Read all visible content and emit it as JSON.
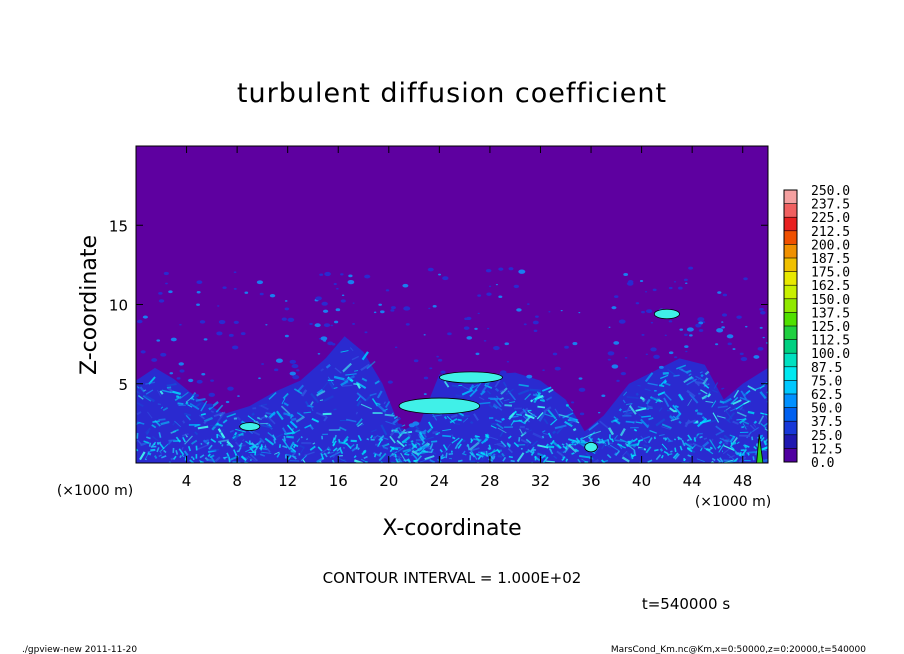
{
  "chart_data": {
    "type": "heatmap",
    "title": "turbulent diffusion coefficient",
    "xlabel": "X-coordinate",
    "ylabel": "Z-coordinate",
    "x_unit_left": "(×1000 m)",
    "x_unit_right": "(×1000 m)",
    "xlim": [
      0,
      50
    ],
    "ylim": [
      0,
      20
    ],
    "x_ticks": [
      "4",
      "8",
      "12",
      "16",
      "20",
      "24",
      "28",
      "32",
      "36",
      "40",
      "44",
      "48"
    ],
    "y_ticks": [
      "5",
      "10",
      "15"
    ],
    "x_tick_values": [
      4,
      8,
      12,
      16,
      20,
      24,
      28,
      32,
      36,
      40,
      44,
      48
    ],
    "y_tick_values": [
      5,
      10,
      15
    ],
    "colorbar": {
      "levels": [
        "250.0",
        "237.5",
        "225.0",
        "212.5",
        "200.0",
        "187.5",
        "175.0",
        "162.5",
        "150.0",
        "137.5",
        "125.0",
        "112.5",
        "100.0",
        "87.5",
        "75.0",
        "62.5",
        "50.0",
        "37.5",
        "25.0",
        "12.5",
        "0.0"
      ],
      "colors": [
        "#f4a0a0",
        "#f06060",
        "#e82020",
        "#f05000",
        "#f09000",
        "#f0c000",
        "#e8e800",
        "#c8f000",
        "#90e800",
        "#50e000",
        "#20d040",
        "#00d080",
        "#00e0c0",
        "#00e8f0",
        "#00c8ff",
        "#0090ff",
        "#0060f0",
        "#1838d8",
        "#2018b0",
        "#5000a0"
      ]
    },
    "background_color": "#5e00a0",
    "turbulent_layer_top": [
      [
        0,
        5.2
      ],
      [
        1.5,
        6.0
      ],
      [
        3,
        5.3
      ],
      [
        5,
        4.0
      ],
      [
        7,
        3.1
      ],
      [
        9,
        3.6
      ],
      [
        11,
        4.5
      ],
      [
        13,
        5.2
      ],
      [
        15,
        6.6
      ],
      [
        16.5,
        8.0
      ],
      [
        18,
        7.0
      ],
      [
        19.5,
        5.0
      ],
      [
        21,
        2.0
      ],
      [
        22.5,
        2.6
      ],
      [
        24,
        5.6
      ],
      [
        26,
        5.2
      ],
      [
        28,
        5.6
      ],
      [
        30,
        5.7
      ],
      [
        32,
        5.2
      ],
      [
        34,
        4.0
      ],
      [
        35.5,
        2.0
      ],
      [
        37,
        3.0
      ],
      [
        39,
        5.0
      ],
      [
        41,
        5.8
      ],
      [
        43,
        6.6
      ],
      [
        45,
        6.2
      ],
      [
        46.5,
        4.0
      ],
      [
        48,
        5.0
      ],
      [
        50,
        6.0
      ]
    ],
    "contour_interval": "CONTOUR INTERVAL = 1.000E+02",
    "time": "t=540000 s"
  },
  "footer": {
    "left": "./gpview-new   2011-11-20",
    "right": "MarsCond_Km.nc@Km,x=0:50000,z=0:20000,t=540000"
  }
}
